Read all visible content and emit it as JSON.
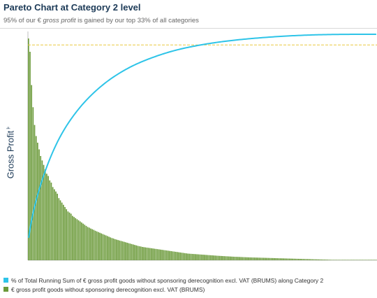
{
  "header": {
    "title": "Pareto Chart at Category 2 level",
    "subtitle_prefix": "95% of our € ",
    "subtitle_emph": "gross profit",
    "subtitle_suffix": " is gained by our top 33% of all categories"
  },
  "axis": {
    "ylabel": "Gross Profit",
    "ylabel_icon": "filter-icon",
    "filter_glyph": "⊧"
  },
  "colors": {
    "bars": "#6b9a3a",
    "bar_edge": "#4f7d27",
    "line": "#2ec4e8",
    "threshold": "#e8c840",
    "axis": "#bfbfbf"
  },
  "chart_data": {
    "type": "bar",
    "title": "Pareto Chart at Category 2 level",
    "xlabel": "",
    "ylabel": "Gross Profit",
    "category_count": 230,
    "bars_relative_to_max": [
      1.0,
      0.94,
      0.79,
      0.69,
      0.61,
      0.56,
      0.53,
      0.5,
      0.47,
      0.45,
      0.43,
      0.41,
      0.39,
      0.38,
      0.36,
      0.35,
      0.33,
      0.32,
      0.31,
      0.3,
      0.28,
      0.27,
      0.26,
      0.25,
      0.24,
      0.23,
      0.22,
      0.215,
      0.21,
      0.2,
      0.195,
      0.19,
      0.185,
      0.18,
      0.175,
      0.17,
      0.165,
      0.16,
      0.155,
      0.15,
      0.147,
      0.143,
      0.14,
      0.137,
      0.133,
      0.13,
      0.127,
      0.124,
      0.121,
      0.118,
      0.115,
      0.112,
      0.109,
      0.106,
      0.103,
      0.1,
      0.098,
      0.095,
      0.093,
      0.091,
      0.089,
      0.087,
      0.085,
      0.083,
      0.081,
      0.079,
      0.077,
      0.075,
      0.073,
      0.071,
      0.069,
      0.067,
      0.065,
      0.063,
      0.062,
      0.06,
      0.059,
      0.058,
      0.057,
      0.056,
      0.055,
      0.054,
      0.053,
      0.052,
      0.051,
      0.05,
      0.049,
      0.048,
      0.047,
      0.046,
      0.045,
      0.044,
      0.043,
      0.042,
      0.041,
      0.04,
      0.039,
      0.038,
      0.037,
      0.036,
      0.035,
      0.034,
      0.033,
      0.032,
      0.031,
      0.03,
      0.0295,
      0.029,
      0.0285,
      0.028,
      0.0275,
      0.027,
      0.0265,
      0.026,
      0.0255,
      0.025,
      0.0245,
      0.024,
      0.0235,
      0.023,
      0.0225,
      0.022,
      0.0215,
      0.021,
      0.0205,
      0.02,
      0.0196,
      0.0192,
      0.0188,
      0.0184,
      0.018,
      0.0176,
      0.0172,
      0.0168,
      0.0164,
      0.016,
      0.0157,
      0.0154,
      0.0151,
      0.0148,
      0.0145,
      0.0142,
      0.0139,
      0.0136,
      0.0133,
      0.013,
      0.0128,
      0.0126,
      0.0124,
      0.0122,
      0.012,
      0.0118,
      0.0116,
      0.0114,
      0.0112,
      0.011,
      0.0108,
      0.0106,
      0.0104,
      0.0102,
      0.01,
      0.0098,
      0.0096,
      0.0094,
      0.0092,
      0.009,
      0.0088,
      0.0086,
      0.0084,
      0.0082,
      0.008,
      0.0078,
      0.0076,
      0.0074,
      0.0072,
      0.007,
      0.0068,
      0.0066,
      0.0064,
      0.0062,
      0.006,
      0.0058,
      0.0056,
      0.0054,
      0.0052,
      0.005,
      0.0048,
      0.0046,
      0.0044,
      0.0042,
      0.004,
      0.0038,
      0.0036,
      0.0034,
      0.0032,
      0.003,
      0.0028,
      0.0026,
      0.0024,
      0.0022,
      0.002,
      0.0019,
      0.0018,
      0.0017,
      0.0016,
      0.0015,
      0.0014,
      0.0013,
      0.0012,
      0.0011,
      0.001,
      0.0009,
      0.0008,
      0.0007,
      0.0006,
      0.0005,
      0.0004,
      0.0003,
      0.0002,
      0.0002,
      0.0001,
      0.0001,
      0.0001,
      0.0001,
      0.0001,
      0.0001,
      0.0001,
      0.0001,
      0.0001,
      0.0001
    ],
    "threshold_percent": 95,
    "series": [
      {
        "name": "% of Total Running Sum of € gross profit goods without sponsoring derecognition excl. VAT (BRUMS) along Category 2",
        "kind": "line",
        "color": "#2ec4e8"
      },
      {
        "name": "€ gross profit goods without sponsoring derecognition excl. VAT (BRUMS)",
        "kind": "bar",
        "color": "#6b9a3a"
      }
    ],
    "legend_position": "bottom",
    "grid": false
  },
  "legend": {
    "items": [
      {
        "label": "% of Total Running Sum of € gross profit goods without sponsoring derecognition excl. VAT (BRUMS) along Category 2",
        "color": "#2ec4e8"
      },
      {
        "label": "€ gross profit goods without sponsoring derecognition excl. VAT (BRUMS)",
        "color": "#6b9a3a"
      }
    ]
  }
}
